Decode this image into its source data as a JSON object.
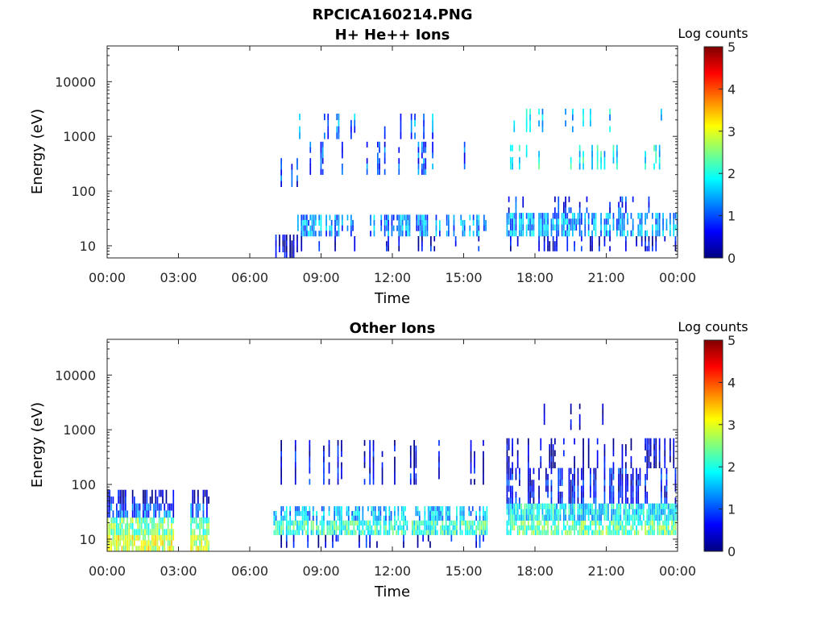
{
  "figure": {
    "title": "RPCICA160214.PNG"
  },
  "chart_data": [
    {
      "type": "heatmap",
      "title": "H+ He++ Ions",
      "xlabel": "Time",
      "ylabel": "Energy (eV)",
      "yscale": "log",
      "ylim": [
        6,
        45000
      ],
      "xlim_hours": [
        0,
        24
      ],
      "xticks": [
        "00:00",
        "03:00",
        "06:00",
        "09:00",
        "12:00",
        "15:00",
        "18:00",
        "21:00",
        "00:00"
      ],
      "yticks": [
        10,
        100,
        1000,
        10000
      ],
      "ytick_labels": [
        "10",
        "100",
        "1000",
        "10000"
      ],
      "colorbar": {
        "label": "Log counts",
        "min": 0,
        "max": 5,
        "ticks": [
          "0",
          "1",
          "2",
          "3",
          "4",
          "5"
        ],
        "colormap": "jet"
      },
      "segments": [
        {
          "start_hour": 7.0,
          "end_hour": 8.0,
          "bands": [
            {
              "emin": 6,
              "emax": 16,
              "level": 0.3,
              "density": 0.5
            },
            {
              "emin": 120,
              "emax": 400,
              "level": 0.8,
              "density": 0.15
            }
          ]
        },
        {
          "start_hour": 8.0,
          "end_hour": 16.0,
          "bands": [
            {
              "emin": 15,
              "emax": 37,
              "level": 1.3,
              "density": 0.55
            },
            {
              "emin": 8,
              "emax": 15,
              "level": 0.5,
              "density": 0.1
            },
            {
              "emin": 200,
              "emax": 800,
              "level": 1.0,
              "density": 0.12
            },
            {
              "emin": 900,
              "emax": 2600,
              "level": 1.2,
              "density": 0.08
            }
          ]
        },
        {
          "start_hour": 16.8,
          "end_hour": 24.0,
          "bands": [
            {
              "emin": 15,
              "emax": 40,
              "level": 1.4,
              "density": 0.8
            },
            {
              "emin": 8,
              "emax": 15,
              "level": 0.4,
              "density": 0.3
            },
            {
              "emin": 40,
              "emax": 80,
              "level": 0.8,
              "density": 0.15
            },
            {
              "emin": 250,
              "emax": 700,
              "level": 1.8,
              "density": 0.22
            },
            {
              "emin": 1200,
              "emax": 3200,
              "level": 1.6,
              "density": 0.1
            }
          ]
        }
      ]
    },
    {
      "type": "heatmap",
      "title": "Other Ions",
      "xlabel": "Time",
      "ylabel": "Energy (eV)",
      "yscale": "log",
      "ylim": [
        6,
        45000
      ],
      "xlim_hours": [
        0,
        24
      ],
      "xticks": [
        "00:00",
        "03:00",
        "06:00",
        "09:00",
        "12:00",
        "15:00",
        "18:00",
        "21:00",
        "00:00"
      ],
      "yticks": [
        10,
        100,
        1000,
        10000
      ],
      "ytick_labels": [
        "10",
        "100",
        "1000",
        "10000"
      ],
      "colorbar": {
        "label": "Log counts",
        "min": 0,
        "max": 5,
        "ticks": [
          "0",
          "1",
          "2",
          "3",
          "4",
          "5"
        ],
        "colormap": "jet"
      },
      "segments": [
        {
          "start_hour": 0.0,
          "end_hour": 2.8,
          "bands": [
            {
              "emin": 6,
              "emax": 12,
              "level": 2.9,
              "density": 1.0
            },
            {
              "emin": 12,
              "emax": 25,
              "level": 2.4,
              "density": 1.0
            },
            {
              "emin": 25,
              "emax": 45,
              "level": 1.0,
              "density": 0.9
            },
            {
              "emin": 45,
              "emax": 80,
              "level": 0.3,
              "density": 0.6
            }
          ]
        },
        {
          "start_hour": 3.5,
          "end_hour": 4.3,
          "bands": [
            {
              "emin": 6,
              "emax": 12,
              "level": 2.8,
              "density": 1.0
            },
            {
              "emin": 12,
              "emax": 25,
              "level": 2.3,
              "density": 1.0
            },
            {
              "emin": 25,
              "emax": 45,
              "level": 1.0,
              "density": 0.9
            },
            {
              "emin": 45,
              "emax": 80,
              "level": 0.3,
              "density": 0.6
            }
          ]
        },
        {
          "start_hour": 7.0,
          "end_hour": 16.0,
          "bands": [
            {
              "emin": 12,
              "emax": 22,
              "level": 2.1,
              "density": 0.9
            },
            {
              "emin": 22,
              "emax": 40,
              "level": 1.5,
              "density": 0.7
            },
            {
              "emin": 7,
              "emax": 12,
              "level": 0.5,
              "density": 0.2
            },
            {
              "emin": 100,
              "emax": 650,
              "level": 0.5,
              "density": 0.15
            }
          ]
        },
        {
          "start_hour": 16.8,
          "end_hour": 24.0,
          "bands": [
            {
              "emin": 12,
              "emax": 22,
              "level": 2.3,
              "density": 0.95
            },
            {
              "emin": 22,
              "emax": 45,
              "level": 1.8,
              "density": 0.9
            },
            {
              "emin": 45,
              "emax": 200,
              "level": 0.6,
              "density": 0.5
            },
            {
              "emin": 200,
              "emax": 700,
              "level": 0.3,
              "density": 0.3
            },
            {
              "emin": 1000,
              "emax": 3000,
              "level": 0.3,
              "density": 0.05
            }
          ]
        }
      ]
    }
  ]
}
